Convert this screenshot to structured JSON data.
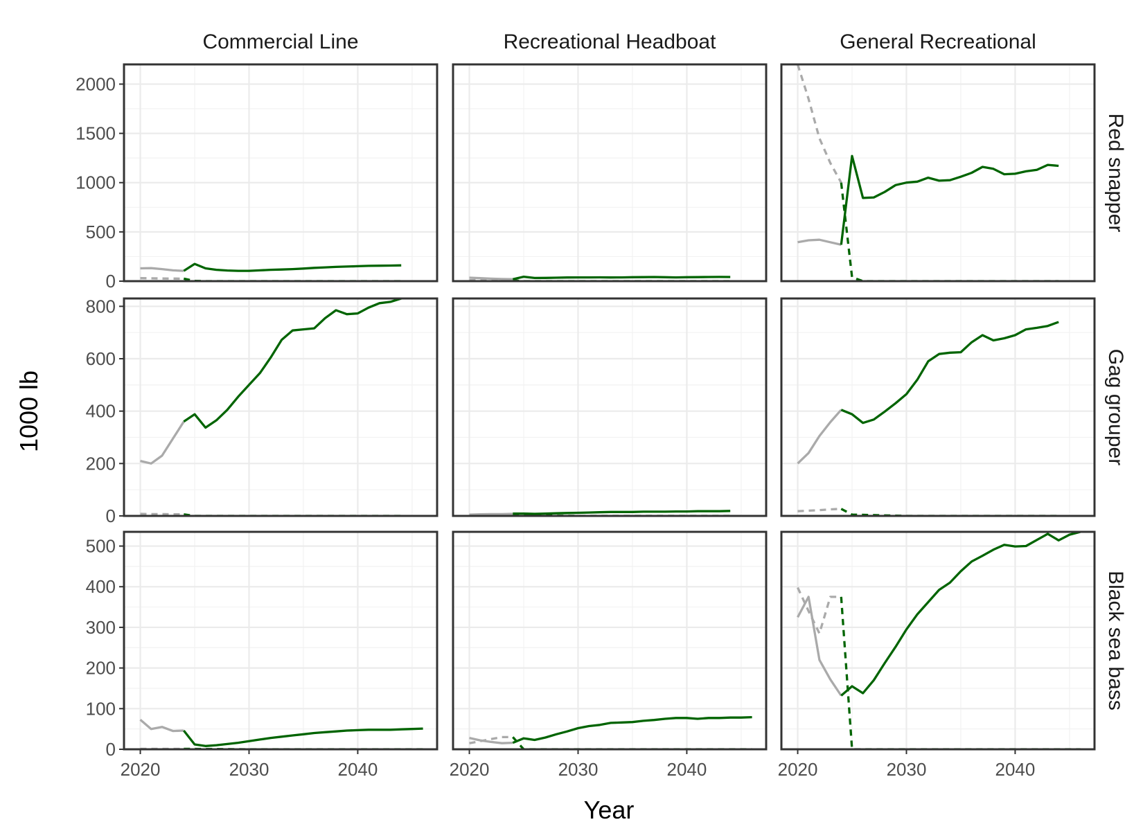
{
  "chart_data": {
    "type": "line",
    "xlabel": "Year",
    "ylabel": "1000 lb",
    "columns": [
      "Commercial Line",
      "Recreational Headboat",
      "General Recreational"
    ],
    "rows": [
      {
        "label": "Red snapper",
        "ylim": [
          0,
          2200
        ],
        "yticks": [
          0,
          500,
          1000,
          1500,
          2000
        ]
      },
      {
        "label": "Gag grouper",
        "ylim": [
          0,
          830
        ],
        "yticks": [
          0,
          200,
          400,
          600,
          800
        ]
      },
      {
        "label": "Black sea bass",
        "ylim": [
          0,
          535
        ],
        "yticks": [
          0,
          100,
          200,
          300,
          400,
          500
        ]
      }
    ],
    "xlim": [
      2018.5,
      2047.3
    ],
    "xticks": [
      2020,
      2030,
      2040
    ],
    "colors": {
      "history": "#aaaaaa",
      "projection": "#006400"
    },
    "panels": [
      {
        "row": 0,
        "col": 0,
        "series": [
          {
            "kind": "history",
            "dash": false,
            "x": [
              2020,
              2021,
              2022,
              2023,
              2024
            ],
            "y": [
              130,
              132,
              122,
              110,
              105
            ]
          },
          {
            "kind": "history",
            "dash": true,
            "x": [
              2020,
              2021,
              2022,
              2023,
              2024
            ],
            "y": [
              30,
              29,
              27,
              26,
              25
            ]
          },
          {
            "kind": "projection",
            "dash": false,
            "x": [
              2024,
              2025,
              2026,
              2027,
              2028,
              2029,
              2030,
              2031,
              2032,
              2033,
              2034,
              2035,
              2036,
              2037,
              2038,
              2039,
              2040,
              2041,
              2042,
              2043,
              2044
            ],
            "y": [
              105,
              175,
              130,
              115,
              108,
              105,
              105,
              110,
              115,
              118,
              122,
              128,
              135,
              140,
              145,
              148,
              152,
              155,
              157,
              158,
              160
            ]
          },
          {
            "kind": "projection",
            "dash": true,
            "x": [
              2024,
              2025,
              2026,
              2030,
              2035,
              2040,
              2044
            ],
            "y": [
              25,
              3,
              0,
              0,
              0,
              0,
              0
            ]
          }
        ]
      },
      {
        "row": 0,
        "col": 1,
        "series": [
          {
            "kind": "history",
            "dash": false,
            "x": [
              2020,
              2021,
              2022,
              2023,
              2024
            ],
            "y": [
              35,
              30,
              25,
              22,
              20
            ]
          },
          {
            "kind": "history",
            "dash": true,
            "x": [
              2020,
              2021,
              2022,
              2023,
              2024
            ],
            "y": [
              10,
              9,
              9,
              8,
              8
            ]
          },
          {
            "kind": "projection",
            "dash": false,
            "x": [
              2024,
              2025,
              2026,
              2027,
              2028,
              2029,
              2030,
              2031,
              2032,
              2033,
              2034,
              2035,
              2036,
              2037,
              2038,
              2039,
              2040,
              2041,
              2042,
              2043,
              2044
            ],
            "y": [
              20,
              45,
              32,
              33,
              35,
              37,
              38,
              38,
              39,
              37,
              38,
              40,
              41,
              42,
              40,
              38,
              40,
              41,
              42,
              43,
              42
            ]
          },
          {
            "kind": "projection",
            "dash": true,
            "x": [
              2024,
              2025,
              2030,
              2035,
              2040,
              2044
            ],
            "y": [
              8,
              0,
              0,
              0,
              0,
              0
            ]
          }
        ]
      },
      {
        "row": 0,
        "col": 2,
        "series": [
          {
            "kind": "history",
            "dash": false,
            "x": [
              2020,
              2021,
              2022,
              2023,
              2024
            ],
            "y": [
              395,
              415,
              420,
              395,
              370
            ]
          },
          {
            "kind": "history",
            "dash": true,
            "x": [
              2020,
              2021,
              2022,
              2023,
              2024
            ],
            "y": [
              2200,
              1850,
              1450,
              1200,
              1000
            ]
          },
          {
            "kind": "projection",
            "dash": false,
            "x": [
              2024,
              2025,
              2026,
              2027,
              2028,
              2029,
              2030,
              2031,
              2032,
              2033,
              2034,
              2035,
              2036,
              2037,
              2038,
              2039,
              2040,
              2041,
              2042,
              2043,
              2044
            ],
            "y": [
              370,
              1270,
              845,
              850,
              905,
              975,
              1000,
              1010,
              1050,
              1020,
              1025,
              1060,
              1100,
              1160,
              1140,
              1085,
              1090,
              1115,
              1130,
              1180,
              1170
            ]
          },
          {
            "kind": "projection",
            "dash": true,
            "x": [
              2024,
              2025,
              2026,
              2030,
              2035,
              2040,
              2044
            ],
            "y": [
              1000,
              40,
              0,
              0,
              0,
              0,
              0
            ]
          }
        ]
      },
      {
        "row": 1,
        "col": 0,
        "series": [
          {
            "kind": "history",
            "dash": false,
            "x": [
              2020,
              2021,
              2022,
              2023,
              2024
            ],
            "y": [
              210,
              200,
              230,
              295,
              360
            ]
          },
          {
            "kind": "history",
            "dash": true,
            "x": [
              2020,
              2021,
              2022,
              2023,
              2024
            ],
            "y": [
              8,
              7,
              7,
              6,
              6
            ]
          },
          {
            "kind": "projection",
            "dash": false,
            "x": [
              2024,
              2025,
              2026,
              2027,
              2028,
              2029,
              2030,
              2031,
              2032,
              2033,
              2034,
              2035,
              2036,
              2037,
              2038,
              2039,
              2040,
              2041,
              2042,
              2043,
              2044
            ],
            "y": [
              360,
              388,
              337,
              365,
              405,
              455,
              500,
              545,
              605,
              672,
              708,
              712,
              716,
              755,
              785,
              770,
              773,
              795,
              812,
              817,
              830
            ]
          },
          {
            "kind": "projection",
            "dash": true,
            "x": [
              2024,
              2025,
              2030,
              2035,
              2040,
              2044
            ],
            "y": [
              6,
              0,
              0,
              0,
              0,
              0
            ]
          }
        ]
      },
      {
        "row": 1,
        "col": 1,
        "series": [
          {
            "kind": "history",
            "dash": false,
            "x": [
              2020,
              2021,
              2022,
              2023,
              2024
            ],
            "y": [
              5,
              6,
              7,
              7,
              8
            ]
          },
          {
            "kind": "history",
            "dash": true,
            "x": [
              2020,
              2022,
              2024
            ],
            "y": [
              2,
              2,
              2
            ]
          },
          {
            "kind": "projection",
            "dash": false,
            "x": [
              2024,
              2025,
              2026,
              2027,
              2028,
              2029,
              2030,
              2031,
              2032,
              2033,
              2034,
              2035,
              2036,
              2037,
              2038,
              2039,
              2040,
              2041,
              2042,
              2043,
              2044
            ],
            "y": [
              9,
              9,
              8,
              9,
              10,
              11,
              12,
              13,
              14,
              15,
              15,
              15,
              16,
              16,
              16,
              17,
              17,
              18,
              18,
              18,
              19
            ]
          },
          {
            "kind": "projection",
            "dash": true,
            "x": [
              2024,
              2030,
              2035,
              2040,
              2044
            ],
            "y": [
              2,
              0,
              0,
              0,
              0
            ]
          }
        ]
      },
      {
        "row": 1,
        "col": 2,
        "series": [
          {
            "kind": "history",
            "dash": false,
            "x": [
              2020,
              2021,
              2022,
              2023,
              2024
            ],
            "y": [
              200,
              240,
              305,
              358,
              405
            ]
          },
          {
            "kind": "history",
            "dash": true,
            "x": [
              2020,
              2021,
              2022,
              2023,
              2024
            ],
            "y": [
              18,
              20,
              22,
              25,
              27
            ]
          },
          {
            "kind": "projection",
            "dash": false,
            "x": [
              2024,
              2025,
              2026,
              2027,
              2028,
              2029,
              2030,
              2031,
              2032,
              2033,
              2034,
              2035,
              2036,
              2037,
              2038,
              2039,
              2040,
              2041,
              2042,
              2043,
              2044
            ],
            "y": [
              405,
              388,
              355,
              368,
              398,
              430,
              465,
              520,
              590,
              618,
              623,
              625,
              663,
              690,
              670,
              678,
              690,
              712,
              718,
              725,
              740
            ]
          },
          {
            "kind": "projection",
            "dash": true,
            "x": [
              2024,
              2025,
              2030,
              2035,
              2040,
              2044
            ],
            "y": [
              27,
              5,
              0,
              0,
              0,
              0
            ]
          }
        ]
      },
      {
        "row": 2,
        "col": 0,
        "series": [
          {
            "kind": "history",
            "dash": false,
            "x": [
              2020,
              2021,
              2022,
              2023,
              2024
            ],
            "y": [
              73,
              50,
              55,
              45,
              46
            ]
          },
          {
            "kind": "history",
            "dash": true,
            "x": [
              2020,
              2022,
              2024
            ],
            "y": [
              1,
              1,
              1
            ]
          },
          {
            "kind": "projection",
            "dash": false,
            "x": [
              2024,
              2025,
              2026,
              2027,
              2028,
              2029,
              2030,
              2031,
              2032,
              2033,
              2034,
              2035,
              2036,
              2037,
              2038,
              2039,
              2040,
              2041,
              2042,
              2043,
              2044,
              2045,
              2046
            ],
            "y": [
              46,
              12,
              8,
              10,
              13,
              16,
              20,
              24,
              28,
              31,
              34,
              37,
              40,
              42,
              44,
              46,
              47,
              48,
              48,
              48,
              49,
              50,
              51
            ]
          },
          {
            "kind": "projection",
            "dash": true,
            "x": [
              2024,
              2030,
              2040,
              2046
            ],
            "y": [
              1,
              0,
              0,
              0
            ]
          }
        ]
      },
      {
        "row": 2,
        "col": 1,
        "series": [
          {
            "kind": "history",
            "dash": false,
            "x": [
              2020,
              2021,
              2022,
              2023,
              2024
            ],
            "y": [
              28,
              22,
              18,
              15,
              16
            ]
          },
          {
            "kind": "history",
            "dash": true,
            "x": [
              2020,
              2021,
              2022,
              2023,
              2024
            ],
            "y": [
              15,
              20,
              25,
              30,
              30
            ]
          },
          {
            "kind": "projection",
            "dash": false,
            "x": [
              2024,
              2025,
              2026,
              2027,
              2028,
              2029,
              2030,
              2031,
              2032,
              2033,
              2034,
              2035,
              2036,
              2037,
              2038,
              2039,
              2040,
              2041,
              2042,
              2043,
              2044,
              2045,
              2046
            ],
            "y": [
              16,
              27,
              23,
              29,
              37,
              44,
              52,
              57,
              60,
              65,
              66,
              67,
              70,
              72,
              75,
              77,
              77,
              75,
              77,
              77,
              78,
              78,
              79
            ]
          },
          {
            "kind": "projection",
            "dash": true,
            "x": [
              2024,
              2025,
              2030,
              2040,
              2046
            ],
            "y": [
              30,
              0,
              0,
              0,
              0
            ]
          }
        ]
      },
      {
        "row": 2,
        "col": 2,
        "series": [
          {
            "kind": "history",
            "dash": false,
            "x": [
              2020,
              2021,
              2022,
              2023,
              2024
            ],
            "y": [
              325,
              375,
              220,
              172,
              132
            ]
          },
          {
            "kind": "history",
            "dash": true,
            "x": [
              2020,
              2021,
              2022,
              2023,
              2024
            ],
            "y": [
              398,
              340,
              285,
              375,
              375
            ]
          },
          {
            "kind": "projection",
            "dash": false,
            "x": [
              2024,
              2025,
              2026,
              2027,
              2028,
              2029,
              2030,
              2031,
              2032,
              2033,
              2034,
              2035,
              2036,
              2037,
              2038,
              2039,
              2040,
              2041,
              2042,
              2043,
              2044,
              2045,
              2046
            ],
            "y": [
              132,
              155,
              138,
              170,
              212,
              252,
              295,
              332,
              362,
              392,
              410,
              438,
              462,
              476,
              491,
              503,
              499,
              500,
              515,
              530,
              514,
              528,
              535
            ]
          },
          {
            "kind": "projection",
            "dash": true,
            "x": [
              2024,
              2025,
              2030,
              2040,
              2046
            ],
            "y": [
              375,
              0,
              0,
              0,
              0
            ]
          }
        ]
      }
    ]
  }
}
